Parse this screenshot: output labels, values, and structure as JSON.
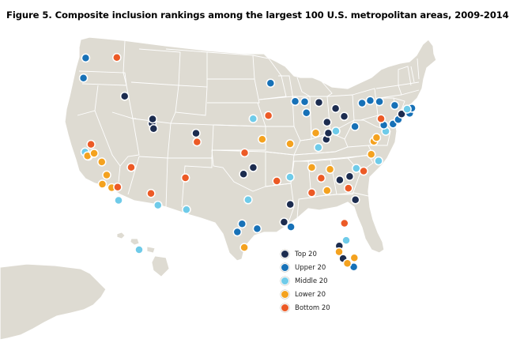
{
  "title": "Figure 5. Composite inclusion rankings among the largest 100 U.S. metropolitan areas, 2009-2014",
  "colors": {
    "land": "#dedbd2",
    "border": "#ffffff",
    "top_20": "#1c2c4f",
    "upper_20": "#1771b7",
    "middle_20": "#6fcbe9",
    "lower_20": "#f4a21f",
    "bottom_20": "#ec5a26"
  },
  "legend": [
    {
      "key": "top_20",
      "label": "Top 20"
    },
    {
      "key": "upper_20",
      "label": "Upper 20"
    },
    {
      "key": "middle_20",
      "label": "Middle 20"
    },
    {
      "key": "lower_20",
      "label": "Lower 20"
    },
    {
      "key": "bottom_20",
      "label": "Bottom 20"
    }
  ],
  "metro_points": [
    {
      "lon": -122.33,
      "lat": 47.61,
      "category": "upper_20"
    },
    {
      "lon": -122.68,
      "lat": 45.52,
      "category": "upper_20"
    },
    {
      "lon": -117.43,
      "lat": 47.66,
      "category": "bottom_20"
    },
    {
      "lon": -116.2,
      "lat": 43.62,
      "category": "top_20"
    },
    {
      "lon": -121.49,
      "lat": 38.58,
      "category": "bottom_20"
    },
    {
      "lon": -122.42,
      "lat": 37.77,
      "category": "middle_20"
    },
    {
      "lon": -121.89,
      "lat": 37.34,
      "category": "top_20"
    },
    {
      "lon": -122.04,
      "lat": 37.37,
      "category": "lower_20"
    },
    {
      "lon": -121.0,
      "lat": 37.64,
      "category": "lower_20"
    },
    {
      "lon": -119.79,
      "lat": 36.74,
      "category": "lower_20"
    },
    {
      "lon": -119.02,
      "lat": 35.37,
      "category": "lower_20"
    },
    {
      "lon": -119.7,
      "lat": 34.42,
      "category": "lower_20"
    },
    {
      "lon": -118.24,
      "lat": 34.05,
      "category": "lower_20"
    },
    {
      "lon": -117.29,
      "lat": 34.11,
      "category": "bottom_20"
    },
    {
      "lon": -117.16,
      "lat": 32.72,
      "category": "middle_20"
    },
    {
      "lon": -115.17,
      "lat": 36.17,
      "category": "bottom_20"
    },
    {
      "lon": -111.89,
      "lat": 40.76,
      "category": "top_20"
    },
    {
      "lon": -111.8,
      "lat": 41.23,
      "category": "top_20"
    },
    {
      "lon": -111.66,
      "lat": 40.23,
      "category": "top_20"
    },
    {
      "lon": -112.07,
      "lat": 33.45,
      "category": "bottom_20"
    },
    {
      "lon": -110.97,
      "lat": 32.22,
      "category": "middle_20"
    },
    {
      "lon": -106.65,
      "lat": 35.08,
      "category": "bottom_20"
    },
    {
      "lon": -104.99,
      "lat": 39.74,
      "category": "top_20"
    },
    {
      "lon": -104.82,
      "lat": 38.83,
      "category": "bottom_20"
    },
    {
      "lon": -106.49,
      "lat": 31.76,
      "category": "middle_20"
    },
    {
      "lon": -157.86,
      "lat": 21.31,
      "category": "middle_20"
    },
    {
      "lon": -93.27,
      "lat": 44.98,
      "category": "upper_20"
    },
    {
      "lon": -96.0,
      "lat": 41.26,
      "category": "middle_20"
    },
    {
      "lon": -93.61,
      "lat": 41.59,
      "category": "bottom_20"
    },
    {
      "lon": -94.58,
      "lat": 39.1,
      "category": "lower_20"
    },
    {
      "lon": -97.34,
      "lat": 37.69,
      "category": "bottom_20"
    },
    {
      "lon": -97.52,
      "lat": 35.47,
      "category": "top_20"
    },
    {
      "lon": -95.99,
      "lat": 36.15,
      "category": "top_20"
    },
    {
      "lon": -96.8,
      "lat": 32.78,
      "category": "middle_20"
    },
    {
      "lon": -97.74,
      "lat": 30.27,
      "category": "upper_20"
    },
    {
      "lon": -98.49,
      "lat": 29.42,
      "category": "upper_20"
    },
    {
      "lon": -95.37,
      "lat": 29.76,
      "category": "upper_20"
    },
    {
      "lon": -97.4,
      "lat": 27.8,
      "category": "lower_20"
    },
    {
      "lon": -92.29,
      "lat": 34.75,
      "category": "bottom_20"
    },
    {
      "lon": -90.2,
      "lat": 35.15,
      "category": "middle_20"
    },
    {
      "lon": -90.18,
      "lat": 32.3,
      "category": "top_20"
    },
    {
      "lon": -91.15,
      "lat": 30.45,
      "category": "top_20"
    },
    {
      "lon": -90.07,
      "lat": 29.95,
      "category": "upper_20"
    },
    {
      "lon": -90.2,
      "lat": 38.63,
      "category": "lower_20"
    },
    {
      "lon": -87.9,
      "lat": 43.04,
      "category": "upper_20"
    },
    {
      "lon": -89.4,
      "lat": 43.07,
      "category": "upper_20"
    },
    {
      "lon": -87.63,
      "lat": 41.88,
      "category": "upper_20"
    },
    {
      "lon": -85.67,
      "lat": 42.96,
      "category": "top_20"
    },
    {
      "lon": -83.05,
      "lat": 42.33,
      "category": "top_20"
    },
    {
      "lon": -86.16,
      "lat": 39.77,
      "category": "lower_20"
    },
    {
      "lon": -85.76,
      "lat": 38.25,
      "category": "middle_20"
    },
    {
      "lon": -84.51,
      "lat": 39.1,
      "category": "top_20"
    },
    {
      "lon": -84.19,
      "lat": 39.76,
      "category": "top_20"
    },
    {
      "lon": -83.0,
      "lat": 39.96,
      "category": "middle_20"
    },
    {
      "lon": -84.39,
      "lat": 40.9,
      "category": "top_20"
    },
    {
      "lon": -81.69,
      "lat": 41.5,
      "category": "top_20"
    },
    {
      "lon": -80.0,
      "lat": 40.44,
      "category": "upper_20"
    },
    {
      "lon": -86.78,
      "lat": 36.16,
      "category": "lower_20"
    },
    {
      "lon": -83.92,
      "lat": 35.96,
      "category": "lower_20"
    },
    {
      "lon": -85.31,
      "lat": 35.05,
      "category": "bottom_20"
    },
    {
      "lon": -86.8,
      "lat": 33.52,
      "category": "bottom_20"
    },
    {
      "lon": -84.39,
      "lat": 33.75,
      "category": "lower_20"
    },
    {
      "lon": -82.39,
      "lat": 34.85,
      "category": "top_20"
    },
    {
      "lon": -81.03,
      "lat": 34.0,
      "category": "bottom_20"
    },
    {
      "lon": -80.84,
      "lat": 35.23,
      "category": "top_20"
    },
    {
      "lon": -79.79,
      "lat": 36.07,
      "category": "middle_20"
    },
    {
      "lon": -78.64,
      "lat": 35.78,
      "category": "bottom_20"
    },
    {
      "lon": -79.93,
      "lat": 32.78,
      "category": "top_20"
    },
    {
      "lon": -81.66,
      "lat": 30.33,
      "category": "bottom_20"
    },
    {
      "lon": -81.38,
      "lat": 28.54,
      "category": "middle_20"
    },
    {
      "lon": -82.46,
      "lat": 27.95,
      "category": "top_20"
    },
    {
      "lon": -82.5,
      "lat": 27.34,
      "category": "lower_20"
    },
    {
      "lon": -81.87,
      "lat": 26.64,
      "category": "top_20"
    },
    {
      "lon": -80.19,
      "lat": 25.76,
      "category": "upper_20"
    },
    {
      "lon": -81.2,
      "lat": 26.14,
      "category": "lower_20"
    },
    {
      "lon": -80.1,
      "lat": 26.71,
      "category": "lower_20"
    },
    {
      "lon": -77.44,
      "lat": 37.54,
      "category": "lower_20"
    },
    {
      "lon": -76.29,
      "lat": 36.85,
      "category": "middle_20"
    },
    {
      "lon": -77.04,
      "lat": 38.9,
      "category": "lower_20"
    },
    {
      "lon": -76.61,
      "lat": 39.29,
      "category": "lower_20"
    },
    {
      "lon": -75.16,
      "lat": 39.95,
      "category": "middle_20"
    },
    {
      "lon": -75.47,
      "lat": 40.6,
      "category": "upper_20"
    },
    {
      "lon": -74.01,
      "lat": 40.71,
      "category": "upper_20"
    },
    {
      "lon": -73.2,
      "lat": 41.18,
      "category": "upper_20"
    },
    {
      "lon": -72.68,
      "lat": 41.76,
      "category": "top_20"
    },
    {
      "lon": -71.41,
      "lat": 41.82,
      "category": "upper_20"
    },
    {
      "lon": -71.06,
      "lat": 42.36,
      "category": "upper_20"
    },
    {
      "lon": -71.8,
      "lat": 42.26,
      "category": "middle_20"
    },
    {
      "lon": -73.76,
      "lat": 42.65,
      "category": "upper_20"
    },
    {
      "lon": -76.15,
      "lat": 43.05,
      "category": "upper_20"
    },
    {
      "lon": -77.61,
      "lat": 43.16,
      "category": "upper_20"
    },
    {
      "lon": -78.88,
      "lat": 42.89,
      "category": "upper_20"
    },
    {
      "lon": -75.9,
      "lat": 41.25,
      "category": "bottom_20"
    }
  ]
}
